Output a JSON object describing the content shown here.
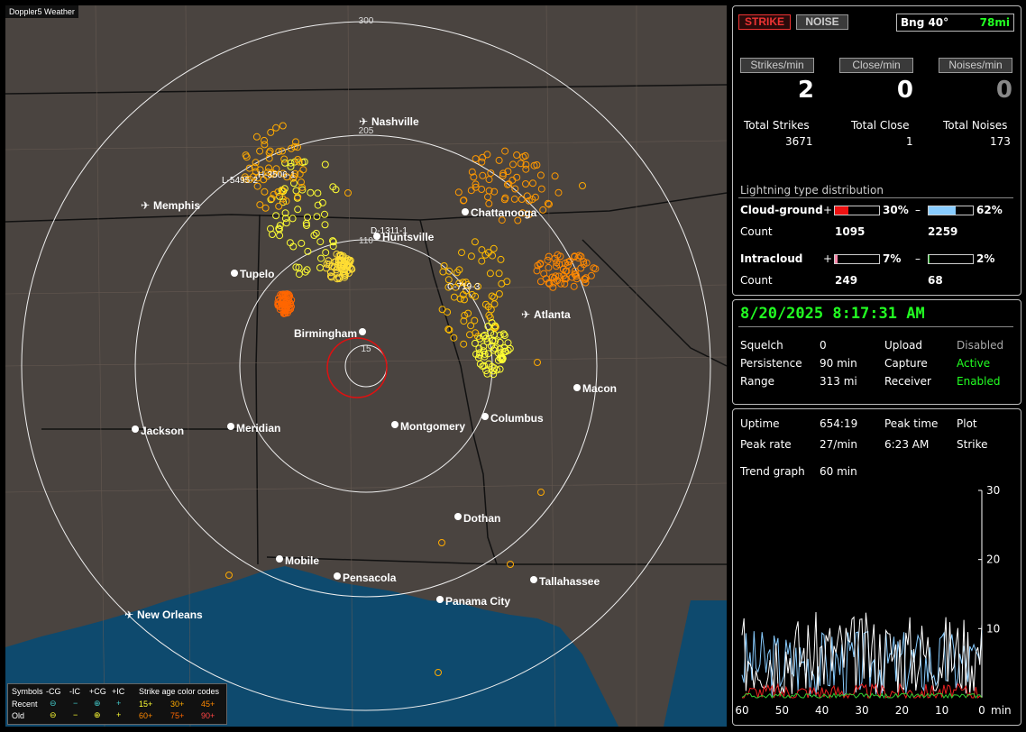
{
  "app_title": "Doppler5 Weather",
  "map": {
    "ring_labels": [
      "15",
      "110",
      "205",
      "300"
    ],
    "cities": [
      "Nashville",
      "Memphis",
      "Chattanooga",
      "Huntsville",
      "Tupelo",
      "Birmingham",
      "Atlanta",
      "Macon",
      "Jackson",
      "Meridian",
      "Montgomery",
      "Columbus",
      "Dothan",
      "Mobile",
      "Pensacola",
      "Tallahassee",
      "Panama City",
      "New Orleans"
    ],
    "track_labels": [
      "H-3506-1",
      "L-5495-2",
      "D-1311-1",
      "C-719-3"
    ]
  },
  "legend": {
    "symbols_label": "Symbols",
    "cols": [
      "-CG",
      "-IC",
      "+CG",
      "+IC"
    ],
    "recent_label": "Recent",
    "old_label": "Old",
    "age_title": "Strike age color codes",
    "ages_recent": [
      "15+",
      "30+",
      "45+"
    ],
    "ages_old": [
      "60+",
      "75+",
      "90+"
    ]
  },
  "top": {
    "strike_btn": "STRIKE",
    "noise_btn": "NOISE",
    "bearing": "Bng 40°",
    "distance": "78mi",
    "strikes_min_label": "Strikes/min",
    "close_min_label": "Close/min",
    "noises_min_label": "Noises/min",
    "strikes_min": "2",
    "close_min": "0",
    "noises_min": "0",
    "total_strikes_label": "Total Strikes",
    "total_close_label": "Total Close",
    "total_noises_label": "Total Noises",
    "total_strikes": "3671",
    "total_close": "1",
    "total_noises": "173",
    "dist_title": "Lightning type distribution",
    "cg_label": "Cloud-ground",
    "ic_label": "Intracloud",
    "count_label": "Count",
    "plus": "+",
    "minus": "–",
    "cg_pos_pct": "30%",
    "cg_neg_pct": "62%",
    "cg_pos_count": "1095",
    "cg_neg_count": "2259",
    "ic_pos_pct": "7%",
    "ic_neg_pct": "2%",
    "ic_pos_count": "249",
    "ic_neg_count": "68",
    "cg_pos_frac": 0.3,
    "cg_neg_frac": 0.62,
    "ic_pos_frac": 0.07,
    "ic_neg_frac": 0.02
  },
  "status": {
    "datetime": "8/20/2025 8:17:31 AM",
    "squelch_label": "Squelch",
    "squelch": "0",
    "persistence_label": "Persistence",
    "persistence": "90 min",
    "range_label": "Range",
    "range": "313 mi",
    "upload_label": "Upload",
    "upload": "Disabled",
    "capture_label": "Capture",
    "capture": "Active",
    "receiver_label": "Receiver",
    "receiver": "Enabled"
  },
  "stats": {
    "uptime_label": "Uptime",
    "uptime": "654:19",
    "peak_time_label": "Peak time",
    "peak_time": "6:23 AM",
    "plot_label": "Plot",
    "plot": "Strike",
    "peak_rate_label": "Peak rate",
    "peak_rate": "27/min",
    "trend_label": "Trend graph",
    "trend": "60 min"
  },
  "chart_data": {
    "type": "line",
    "x_ticks": [
      "60",
      "50",
      "40",
      "30",
      "20",
      "10",
      "0"
    ],
    "x_unit": "min",
    "y_ticks": [
      "30",
      "20",
      "10"
    ],
    "ylim": [
      0,
      30
    ],
    "xlim": [
      60,
      0
    ]
  },
  "colors": {
    "strike_recent": "#ffff33",
    "strike_mid": "#ffaa00",
    "strike_old": "#ff6600",
    "status_green": "#22ff22"
  }
}
